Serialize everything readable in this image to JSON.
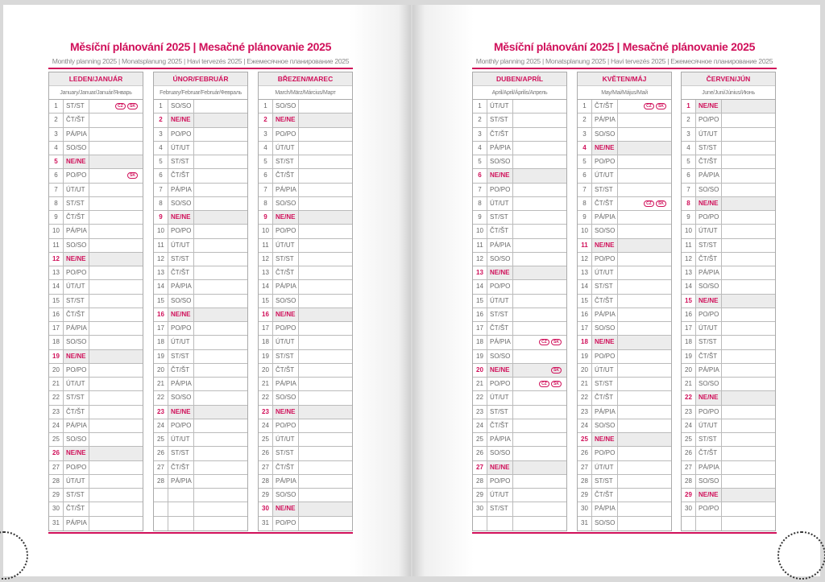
{
  "title": "Měsíční plánování 2025 | Mesačné plánovanie 2025",
  "subtitle": "Monthly planning 2025 | Monatsplanung 2025 | Havi tervezés 2025 | Ежемесячное планирование 2025",
  "weekdays": [
    "PO/PO",
    "ÚT/UT",
    "ST/ST",
    "ČT/ŠT",
    "PÁ/PIA",
    "SO/SO",
    "NE/NE"
  ],
  "accent_color": "#d0105a",
  "months": [
    {
      "name": "LEDEN/JANUÁR",
      "sub": "January/Januar/Január/Январь",
      "first_weekday": 2,
      "days": 31,
      "holidays": {
        "1": [
          "CZ",
          "SK"
        ],
        "6": [
          "SK"
        ]
      }
    },
    {
      "name": "ÚNOR/FEBRUÁR",
      "sub": "February/Februar/Február/Февраль",
      "first_weekday": 5,
      "days": 28,
      "holidays": {}
    },
    {
      "name": "BŘEZEN/MAREC",
      "sub": "March/März/Március/Март",
      "first_weekday": 5,
      "days": 31,
      "holidays": {}
    },
    {
      "name": "DUBEN/APRÍL",
      "sub": "April/April/Április/Апрель",
      "first_weekday": 1,
      "days": 30,
      "holidays": {
        "18": [
          "CZ",
          "SK"
        ],
        "20": [
          "SK"
        ],
        "21": [
          "CZ",
          "SK"
        ]
      }
    },
    {
      "name": "KVĚTEN/MÁJ",
      "sub": "May/Mai/Május/Май",
      "first_weekday": 3,
      "days": 31,
      "holidays": {
        "1": [
          "CZ",
          "SK"
        ],
        "8": [
          "CZ",
          "SK"
        ]
      }
    },
    {
      "name": "ČERVEN/JÚN",
      "sub": "June/Juni/Június/Июнь",
      "first_weekday": 6,
      "days": 30,
      "holidays": {}
    }
  ]
}
